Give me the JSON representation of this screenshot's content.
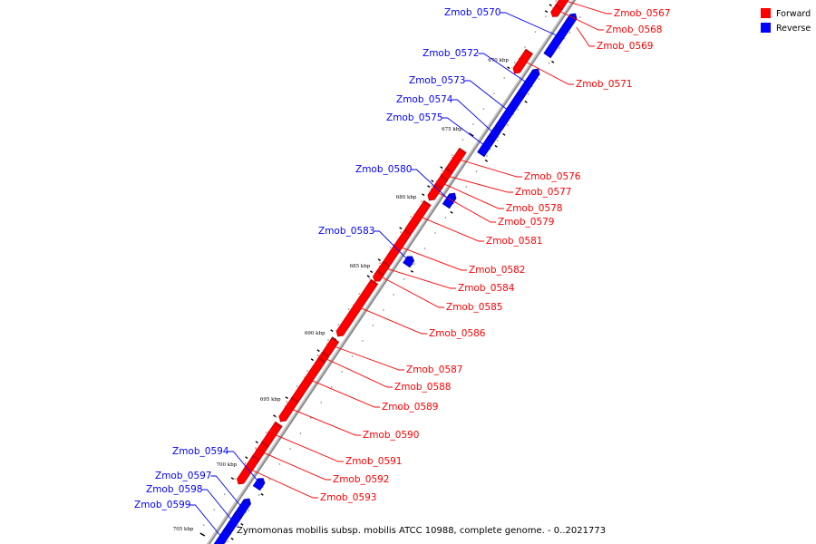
{
  "caption": "Zymomonas mobilis subsp. mobilis ATCC 10988, complete genome. - 0..2021773",
  "legend": [
    {
      "label": "Forward",
      "color": "#ff0000"
    },
    {
      "label": "Reverse",
      "color": "#0000ff"
    }
  ],
  "colors": {
    "forward": "#ff0000",
    "forward_dark": "#b30000",
    "reverse": "#0000ff",
    "reverse_dark": "#0000a0",
    "axis": "#999999"
  },
  "kbp_ticks": [
    "670 kbp",
    "675 kbp",
    "680 kbp",
    "685 kbp",
    "690 kbp",
    "695 kbp",
    "700 kbp",
    "705 kbp"
  ],
  "genes": [
    {
      "name": "Zmob_0567",
      "strand": "forward"
    },
    {
      "name": "Zmob_0568",
      "strand": "forward"
    },
    {
      "name": "Zmob_0569",
      "strand": "forward"
    },
    {
      "name": "Zmob_0570",
      "strand": "reverse"
    },
    {
      "name": "Zmob_0571",
      "strand": "forward"
    },
    {
      "name": "Zmob_0572",
      "strand": "reverse"
    },
    {
      "name": "Zmob_0573",
      "strand": "reverse"
    },
    {
      "name": "Zmob_0574",
      "strand": "reverse"
    },
    {
      "name": "Zmob_0575",
      "strand": "reverse"
    },
    {
      "name": "Zmob_0576",
      "strand": "forward"
    },
    {
      "name": "Zmob_0577",
      "strand": "forward"
    },
    {
      "name": "Zmob_0578",
      "strand": "forward"
    },
    {
      "name": "Zmob_0579",
      "strand": "forward"
    },
    {
      "name": "Zmob_0580",
      "strand": "reverse"
    },
    {
      "name": "Zmob_0581",
      "strand": "forward"
    },
    {
      "name": "Zmob_0582",
      "strand": "forward"
    },
    {
      "name": "Zmob_0583",
      "strand": "reverse"
    },
    {
      "name": "Zmob_0584",
      "strand": "forward"
    },
    {
      "name": "Zmob_0585",
      "strand": "forward"
    },
    {
      "name": "Zmob_0586",
      "strand": "forward"
    },
    {
      "name": "Zmob_0587",
      "strand": "forward"
    },
    {
      "name": "Zmob_0588",
      "strand": "forward"
    },
    {
      "name": "Zmob_0589",
      "strand": "forward"
    },
    {
      "name": "Zmob_0590",
      "strand": "forward"
    },
    {
      "name": "Zmob_0591",
      "strand": "forward"
    },
    {
      "name": "Zmob_0592",
      "strand": "forward"
    },
    {
      "name": "Zmob_0593",
      "strand": "forward"
    },
    {
      "name": "Zmob_0594",
      "strand": "reverse"
    },
    {
      "name": "Zmob_0597",
      "strand": "reverse"
    },
    {
      "name": "Zmob_0598",
      "strand": "reverse"
    },
    {
      "name": "Zmob_0599",
      "strand": "reverse"
    }
  ]
}
